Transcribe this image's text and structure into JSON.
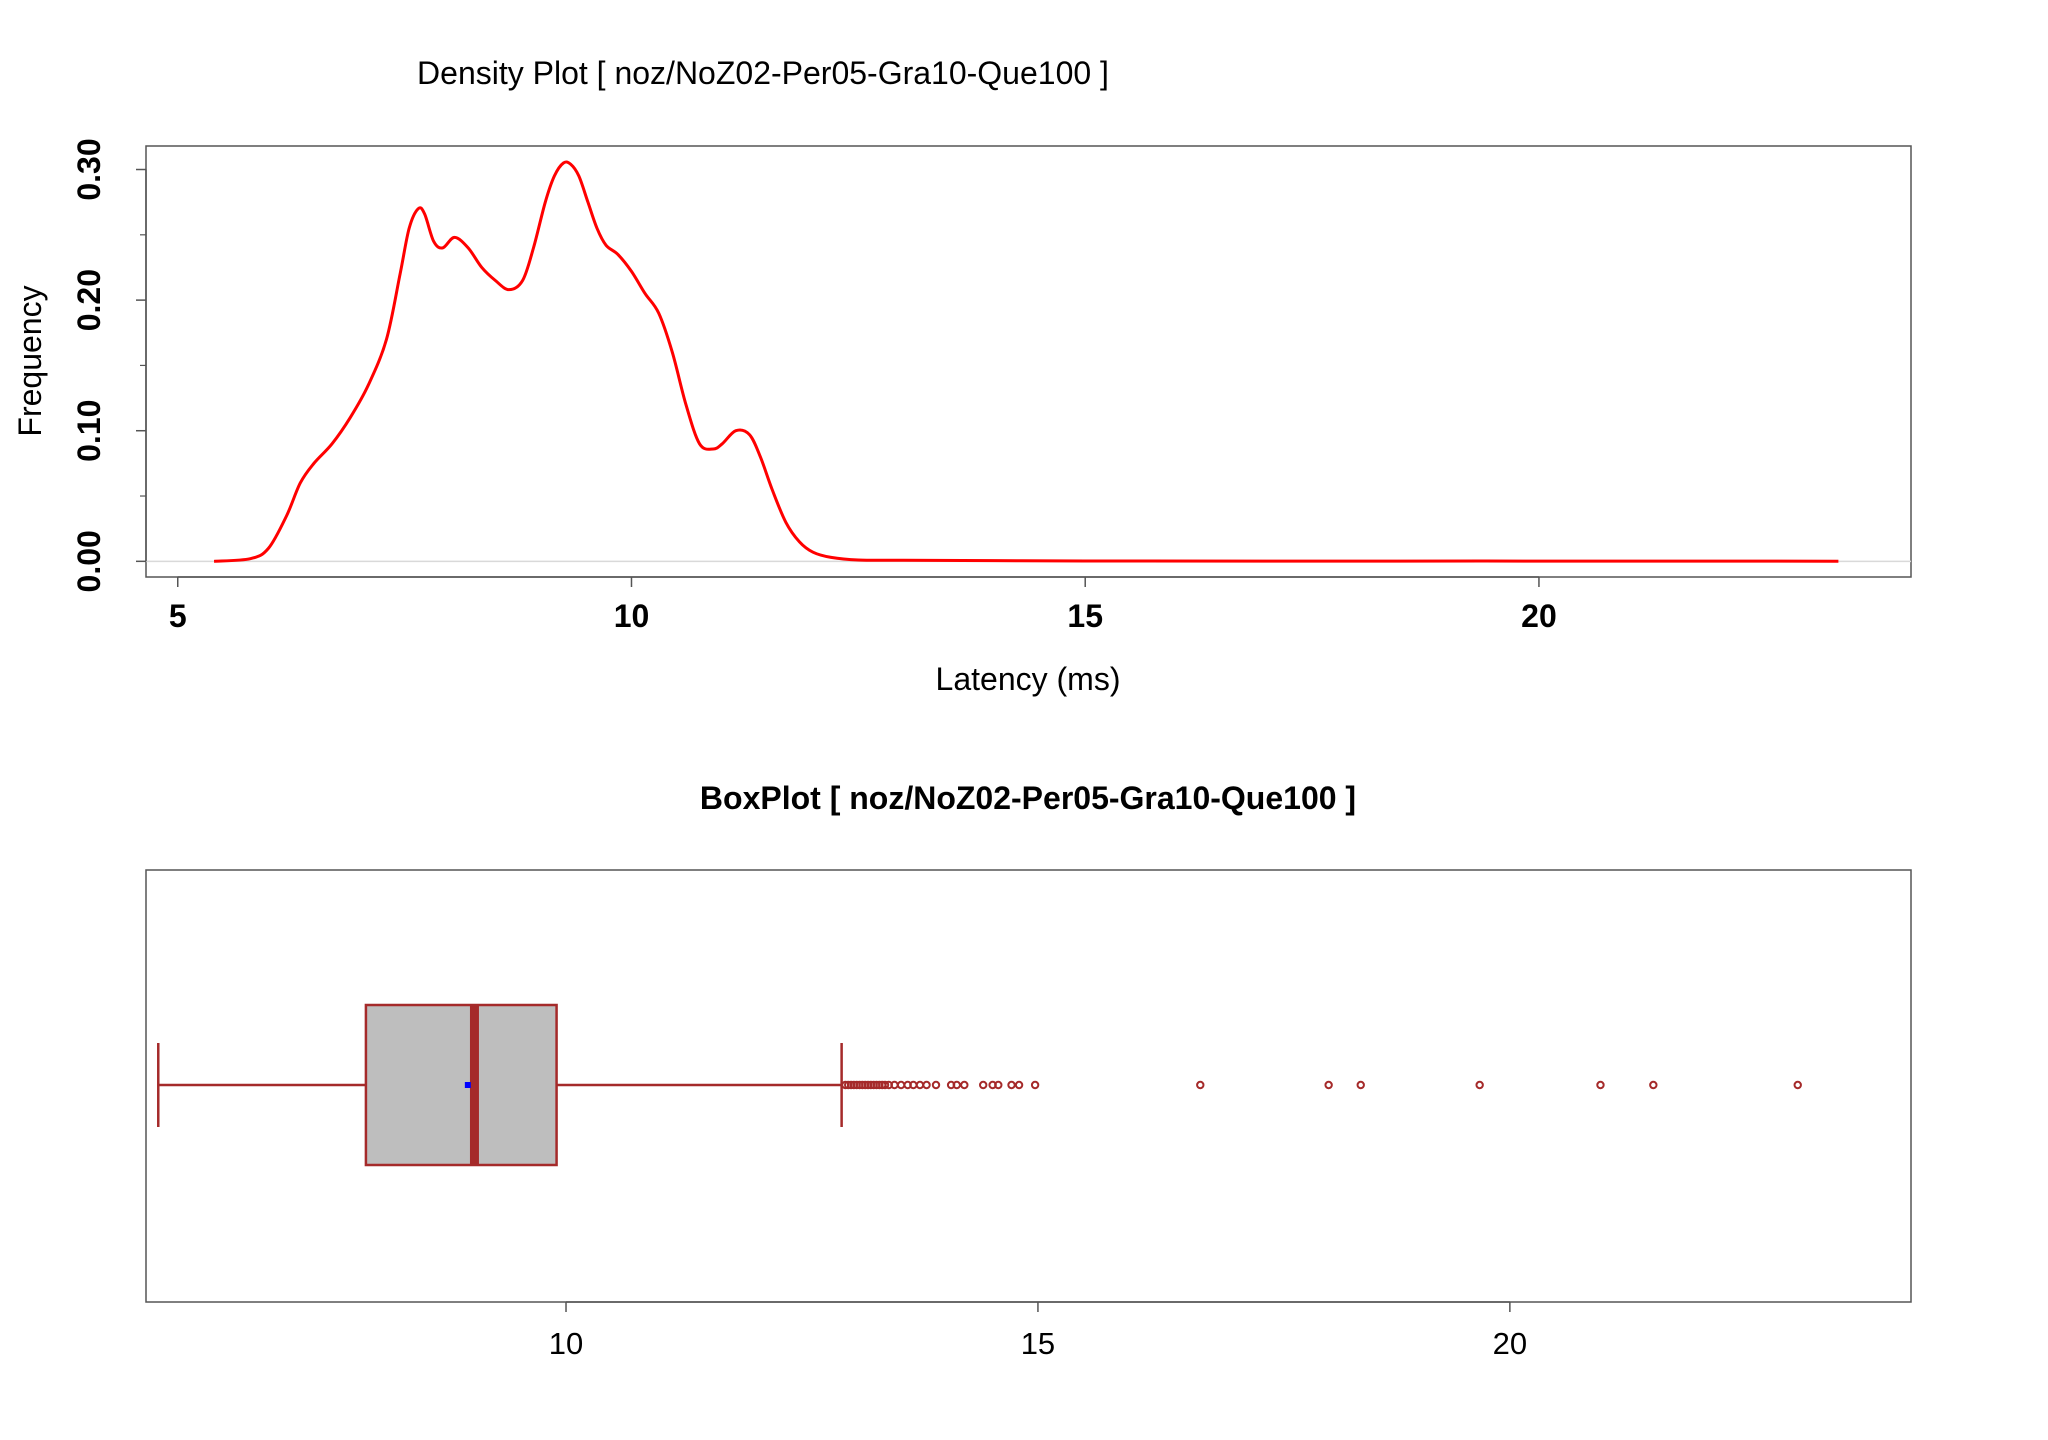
{
  "colors": {
    "density_line": "#ff0000",
    "box_stroke": "#a52a2a",
    "box_fill": "#bebebe",
    "mean_marker": "#0000ff",
    "frame": "#555555",
    "zero_line": "#d9d9d9"
  },
  "chart_data": [
    {
      "type": "line",
      "title": "Density Plot [ noz/NoZ02-Per05-Gra10-Que100 ]",
      "xlabel": "Latency (ms)",
      "ylabel": "Frequency",
      "xlim": [
        4.65,
        24.1
      ],
      "ylim": [
        -0.012,
        0.318
      ],
      "x_ticks": [
        5,
        10,
        15,
        20
      ],
      "x_tick_labels": [
        "5",
        "10",
        "15",
        "20"
      ],
      "y_ticks": [
        0.0,
        0.1,
        0.2,
        0.3
      ],
      "y_tick_labels": [
        "0.00",
        "0.10",
        "0.20",
        "0.30"
      ],
      "y_minor_ticks": [
        0.05,
        0.15,
        0.25
      ],
      "grid": false,
      "series": [
        {
          "x": [
            5.4,
            5.8,
            6.0,
            6.2,
            6.35,
            6.5,
            6.7,
            6.9,
            7.1,
            7.3,
            7.45,
            7.55,
            7.65,
            7.72,
            7.82,
            7.92,
            8.05,
            8.2,
            8.35,
            8.5,
            8.65,
            8.8,
            8.92,
            9.05,
            9.15,
            9.25,
            9.33,
            9.42,
            9.52,
            9.62,
            9.72,
            9.85,
            10.0,
            10.15,
            10.3,
            10.45,
            10.6,
            10.75,
            10.9,
            11.0,
            11.15,
            11.3,
            11.42,
            11.55,
            11.7,
            11.85,
            12.0,
            12.2,
            12.5,
            13.0,
            14.0,
            15.0,
            17.0,
            20.0,
            23.3
          ],
          "y": [
            0.0,
            0.002,
            0.01,
            0.035,
            0.06,
            0.075,
            0.09,
            0.11,
            0.135,
            0.17,
            0.22,
            0.255,
            0.27,
            0.266,
            0.245,
            0.24,
            0.248,
            0.24,
            0.225,
            0.215,
            0.208,
            0.215,
            0.24,
            0.275,
            0.295,
            0.305,
            0.304,
            0.295,
            0.275,
            0.255,
            0.242,
            0.235,
            0.222,
            0.205,
            0.19,
            0.16,
            0.12,
            0.09,
            0.086,
            0.09,
            0.1,
            0.097,
            0.08,
            0.055,
            0.03,
            0.015,
            0.007,
            0.003,
            0.001,
            0.0008,
            0.0005,
            0.0003,
            0.0002,
            0.0002,
            0.0001
          ]
        }
      ]
    },
    {
      "type": "boxplot",
      "title": "BoxPlot [ noz/NoZ02-Per05-Gra10-Que100 ]",
      "xlim": [
        5.55,
        24.25
      ],
      "x_ticks": [
        10,
        15,
        20
      ],
      "x_tick_labels": [
        "10",
        "15",
        "20"
      ],
      "whisker_low": 5.68,
      "q1": 7.88,
      "median": 9.03,
      "q3": 9.9,
      "whisker_high": 12.92,
      "mean": 8.96,
      "outliers": [
        12.96,
        12.99,
        13.02,
        13.05,
        13.08,
        13.11,
        13.14,
        13.17,
        13.2,
        13.23,
        13.26,
        13.29,
        13.32,
        13.35,
        13.38,
        13.42,
        13.48,
        13.55,
        13.62,
        13.68,
        13.75,
        13.82,
        13.92,
        14.08,
        14.14,
        14.22,
        14.42,
        14.52,
        14.58,
        14.72,
        14.8,
        14.97,
        16.72,
        18.08,
        18.42,
        19.68,
        20.96,
        21.52,
        23.05
      ]
    }
  ]
}
